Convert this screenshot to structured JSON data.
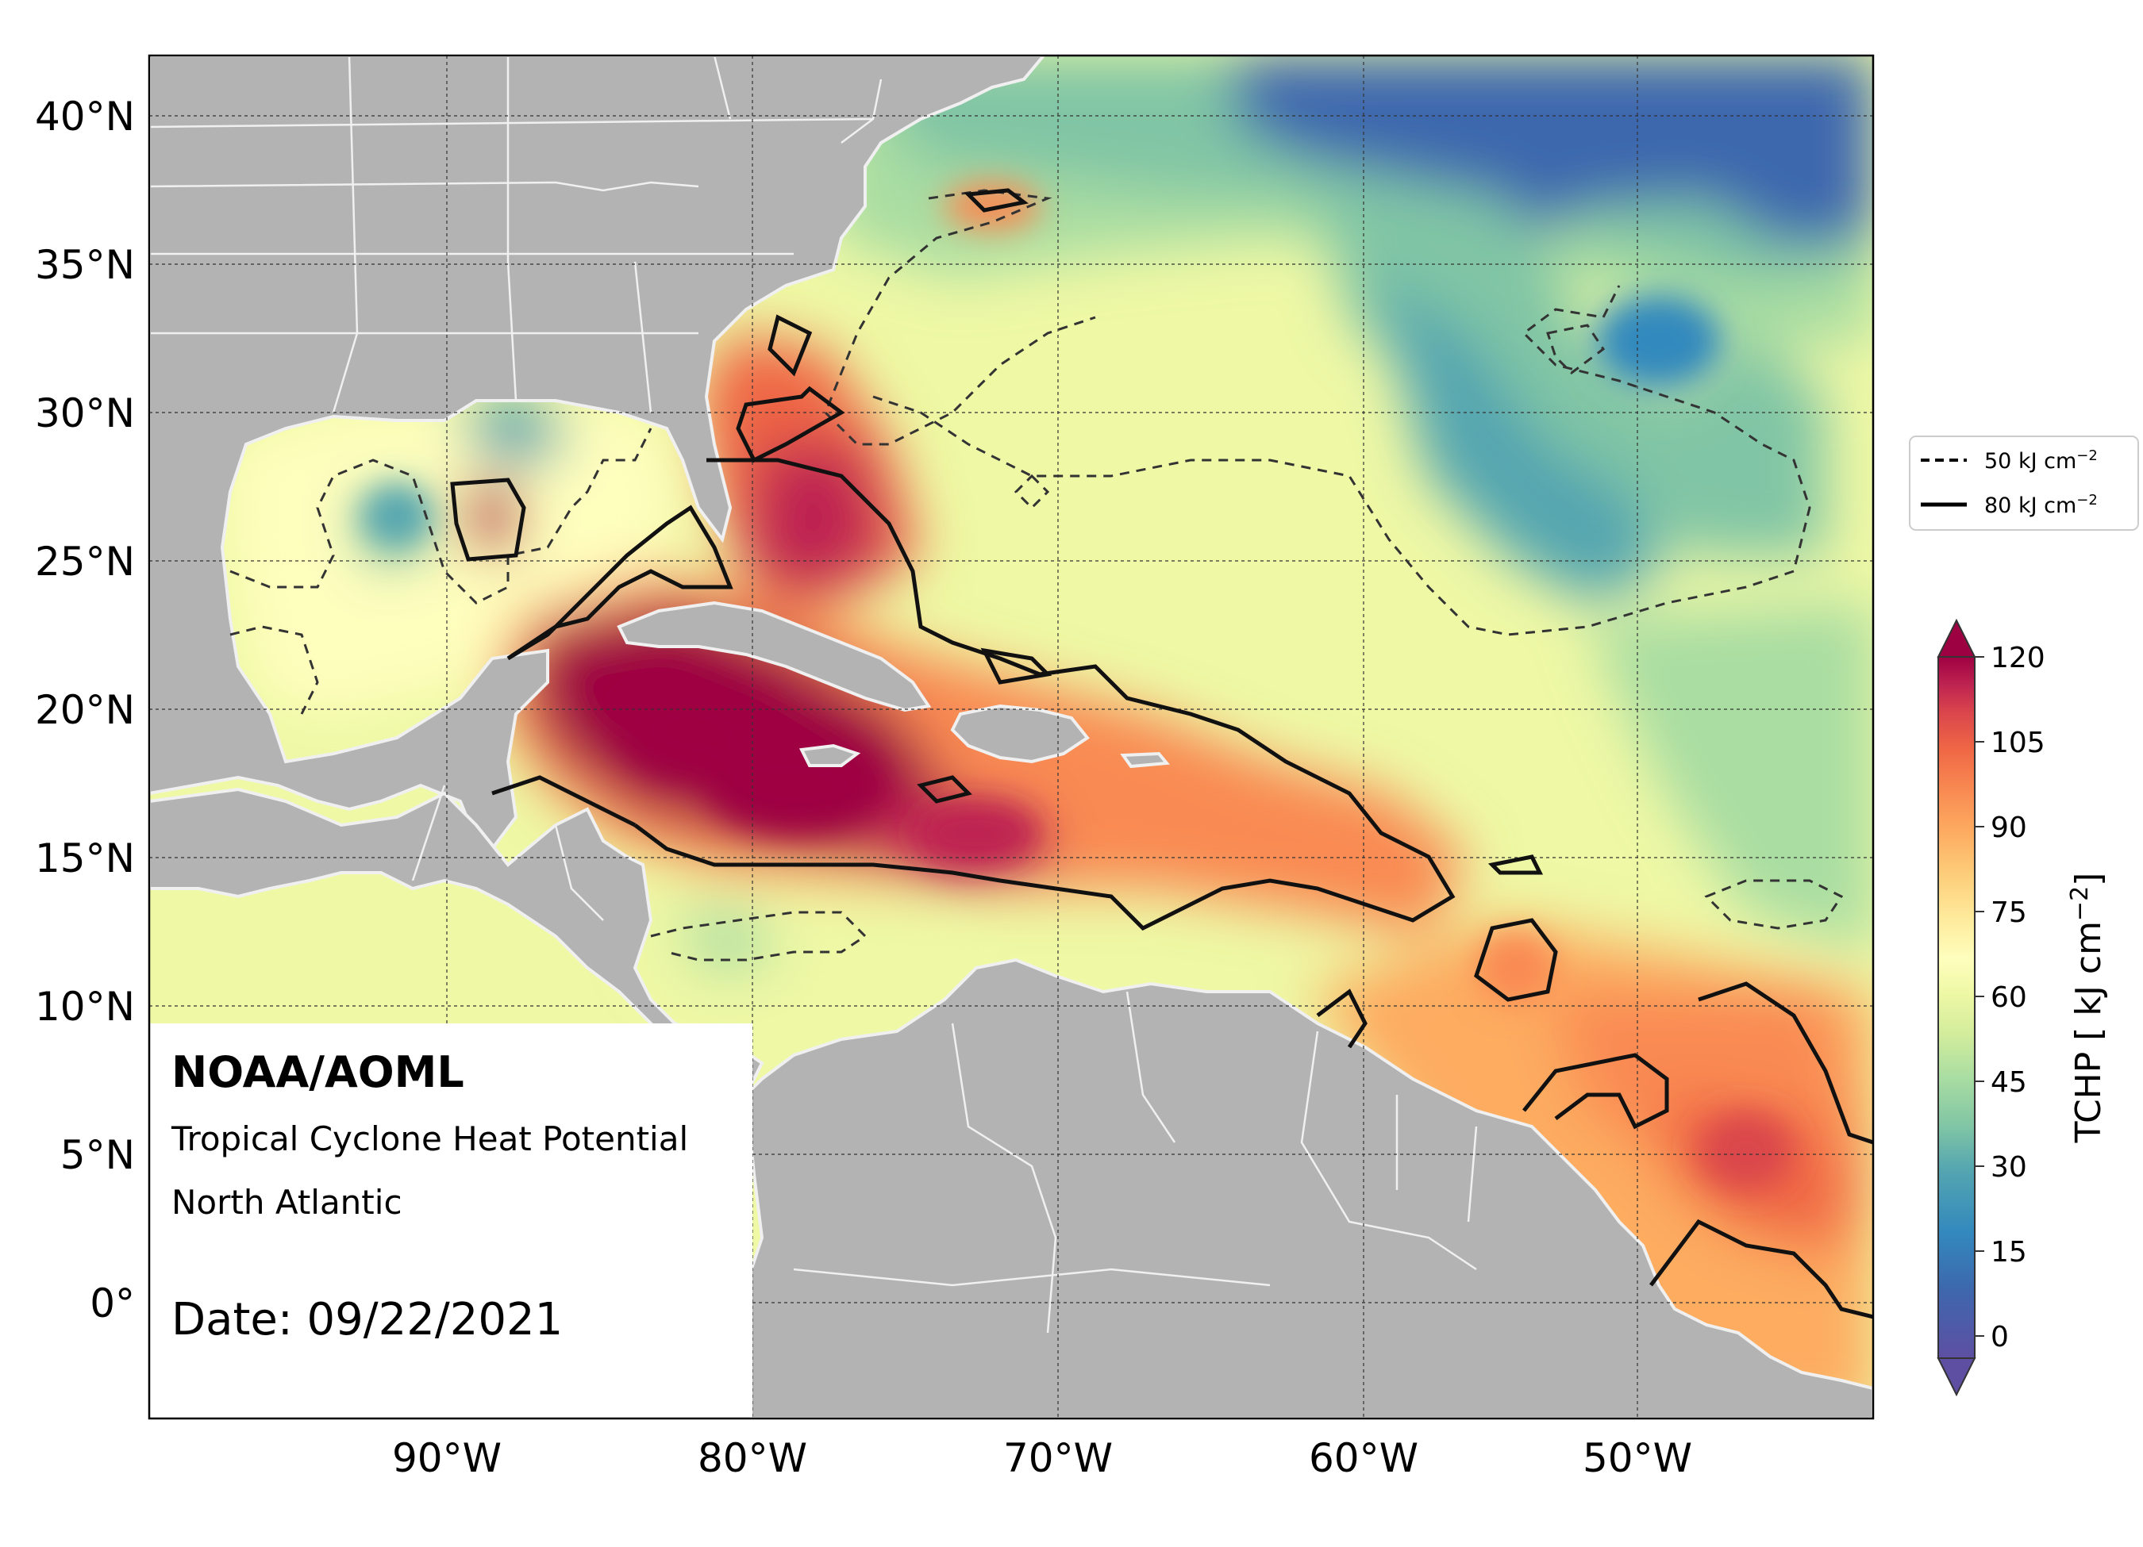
{
  "map": {
    "lat_ticks": [
      "40°N",
      "35°N",
      "30°N",
      "25°N",
      "20°N",
      "15°N",
      "10°N",
      "5°N",
      "0°"
    ],
    "lon_ticks": [
      "90°W",
      "80°W",
      "70°W",
      "60°W",
      "50°W"
    ]
  },
  "info": {
    "org": "NOAA/AOML",
    "product": "Tropical Cyclone Heat Potential",
    "region": "North Atlantic",
    "date": "Date: 09/22/2021"
  },
  "legend": {
    "dashed_label": "50 kJ cm",
    "solid_label": "80 kJ cm",
    "exponent": "−2"
  },
  "colorbar": {
    "title": "TCHP [ kJ cm",
    "title_exponent": "−2",
    "title_close": "]",
    "ticks": [
      "120",
      "105",
      "90",
      "75",
      "60",
      "45",
      "30",
      "15",
      "0"
    ],
    "colors": [
      "#5e4fa2",
      "#3d68ae",
      "#3389bd",
      "#55a6b0",
      "#80c5a5",
      "#a9dda2",
      "#d1ec9c",
      "#eef8a5",
      "#fefebd",
      "#fee99a",
      "#fdcd7a",
      "#fdac61",
      "#f98a52",
      "#ef6645",
      "#da464c",
      "#be2451",
      "#9e0142"
    ]
  }
}
